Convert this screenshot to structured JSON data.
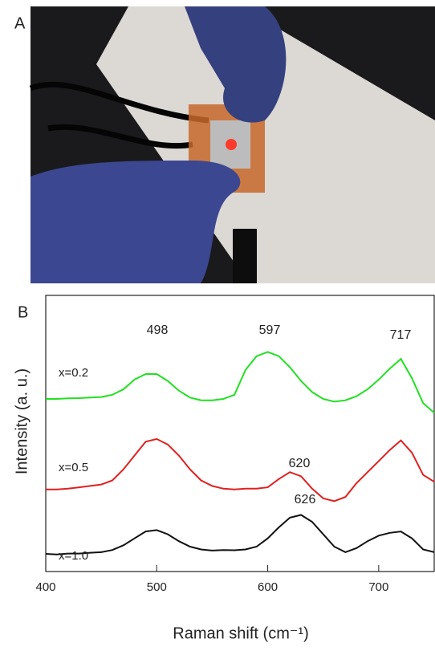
{
  "panel_labels": [
    "A",
    "B"
  ],
  "chart_data": {
    "type": "line",
    "xlabel": "Raman shift (cm⁻¹)",
    "ylabel": "Intensity (a. u.)",
    "x": [
      400,
      410,
      420,
      430,
      440,
      450,
      460,
      470,
      480,
      490,
      500,
      510,
      520,
      530,
      540,
      550,
      560,
      570,
      580,
      590,
      600,
      610,
      620,
      630,
      640,
      650,
      660,
      670,
      680,
      690,
      700,
      710,
      720,
      730,
      740,
      750
    ],
    "series": [
      {
        "name": "x=0.2",
        "color": "#22e022",
        "values": [
          6.25,
          6.25,
          6.27,
          6.28,
          6.3,
          6.32,
          6.4,
          6.6,
          6.95,
          7.15,
          7.15,
          6.9,
          6.55,
          6.3,
          6.2,
          6.2,
          6.25,
          6.4,
          7.3,
          7.8,
          7.95,
          7.8,
          7.4,
          6.9,
          6.5,
          6.25,
          6.15,
          6.2,
          6.35,
          6.6,
          6.95,
          7.35,
          7.7,
          7.0,
          6.1,
          5.75
        ]
      },
      {
        "name": "x=0.5",
        "color": "#e02020",
        "values": [
          2.97,
          2.97,
          3.0,
          3.05,
          3.1,
          3.15,
          3.3,
          3.7,
          4.2,
          4.7,
          4.8,
          4.6,
          4.2,
          3.7,
          3.3,
          3.1,
          3.0,
          2.97,
          3.0,
          3.0,
          3.05,
          3.35,
          3.6,
          3.45,
          3.0,
          2.65,
          2.55,
          2.7,
          3.2,
          3.6,
          4.0,
          4.4,
          4.75,
          4.3,
          3.5,
          3.25
        ]
      },
      {
        "name": "x=1.0",
        "color": "#111111",
        "values": [
          0.64,
          0.62,
          0.65,
          0.65,
          0.68,
          0.7,
          0.78,
          0.95,
          1.2,
          1.45,
          1.5,
          1.35,
          1.1,
          0.9,
          0.8,
          0.76,
          0.78,
          0.77,
          0.8,
          0.9,
          1.2,
          1.6,
          1.95,
          2.05,
          1.8,
          1.35,
          0.9,
          0.7,
          0.85,
          1.1,
          1.3,
          1.4,
          1.45,
          1.2,
          0.8,
          0.7
        ]
      }
    ],
    "annotations": [
      "498",
      "597",
      "717",
      "620",
      "626"
    ],
    "xlim": [
      400,
      750
    ],
    "xticks": [
      400,
      500,
      600,
      700
    ],
    "ylim": [
      0,
      10
    ]
  }
}
